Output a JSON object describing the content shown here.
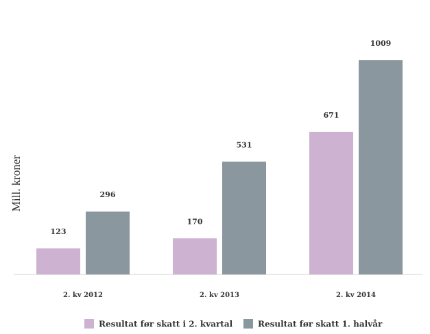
{
  "chart_data": {
    "type": "bar",
    "ylabel": "Mill. kroner",
    "categories": [
      "2. kv 2012",
      "2. kv 2013",
      "2. kv 2014"
    ],
    "series": [
      {
        "name": "Resultat før skatt i 2. kvartal",
        "values": [
          123,
          170,
          671
        ],
        "color": "#ceb2d1"
      },
      {
        "name": "Resultat før skatt 1. halvår",
        "values": [
          296,
          531,
          1009
        ],
        "color": "#8a979e"
      }
    ],
    "ylim": [
      0,
      1150
    ],
    "grid": false,
    "legend_position": "bottom"
  }
}
